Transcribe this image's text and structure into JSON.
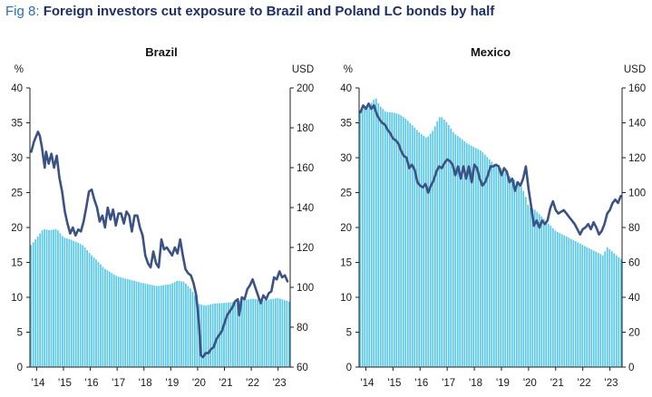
{
  "figure": {
    "prefix": "Fig 8:",
    "title": "Foreign investors cut exposure to Brazil and Poland LC bonds by half"
  },
  "colors": {
    "bars": "#5bc8ea",
    "line": "#3b5284",
    "axis": "#222222"
  },
  "chart_data": [
    {
      "type": "bar",
      "title": "Brazil",
      "left_unit": "%",
      "right_unit": "USD",
      "x_tick_labels": [
        "'14",
        "'15",
        "'16",
        "'17",
        "'18",
        "'19",
        "'20",
        "'21",
        "'22",
        "'23"
      ],
      "y_left": {
        "range": [
          0,
          40
        ],
        "ticks": [
          0,
          5,
          10,
          15,
          20,
          25,
          30,
          35,
          40
        ]
      },
      "y_right": {
        "range": [
          60,
          200
        ],
        "ticks": [
          60,
          80,
          100,
          120,
          140,
          160,
          180,
          200
        ]
      },
      "x_range": [
        2013.75,
        2023.45
      ],
      "bars": {
        "axis": "left",
        "anchors": [
          [
            2013.8,
            17.5
          ],
          [
            2014.0,
            18.5
          ],
          [
            2014.25,
            19.8
          ],
          [
            2014.5,
            19.6
          ],
          [
            2014.75,
            19.8
          ],
          [
            2015.0,
            18.6
          ],
          [
            2015.25,
            18.3
          ],
          [
            2015.5,
            17.9
          ],
          [
            2015.75,
            17.4
          ],
          [
            2016.0,
            16.2
          ],
          [
            2016.25,
            15.3
          ],
          [
            2016.5,
            14.2
          ],
          [
            2016.75,
            13.6
          ],
          [
            2017.0,
            13.0
          ],
          [
            2017.5,
            12.5
          ],
          [
            2018.0,
            12.0
          ],
          [
            2018.5,
            11.6
          ],
          [
            2019.0,
            11.9
          ],
          [
            2019.25,
            12.4
          ],
          [
            2019.5,
            12.2
          ],
          [
            2019.75,
            11.2
          ],
          [
            2019.9,
            10.3
          ],
          [
            2020.0,
            9.1
          ],
          [
            2020.3,
            8.8
          ],
          [
            2020.6,
            9.1
          ],
          [
            2021.0,
            9.2
          ],
          [
            2021.5,
            9.4
          ],
          [
            2022.0,
            9.8
          ],
          [
            2022.5,
            9.6
          ],
          [
            2023.0,
            9.9
          ],
          [
            2023.4,
            9.4
          ]
        ]
      },
      "line": {
        "axis": "right",
        "points": [
          [
            2013.8,
            168
          ],
          [
            2013.9,
            173
          ],
          [
            2014.05,
            178
          ],
          [
            2014.12,
            176
          ],
          [
            2014.2,
            170
          ],
          [
            2014.3,
            160
          ],
          [
            2014.35,
            168
          ],
          [
            2014.45,
            162
          ],
          [
            2014.55,
            167
          ],
          [
            2014.65,
            160
          ],
          [
            2014.75,
            166
          ],
          [
            2014.85,
            155
          ],
          [
            2014.95,
            148
          ],
          [
            2015.05,
            138
          ],
          [
            2015.15,
            132
          ],
          [
            2015.25,
            127
          ],
          [
            2015.35,
            130
          ],
          [
            2015.45,
            126
          ],
          [
            2015.55,
            129
          ],
          [
            2015.65,
            128
          ],
          [
            2015.75,
            133
          ],
          [
            2015.85,
            140
          ],
          [
            2015.95,
            148
          ],
          [
            2016.05,
            149
          ],
          [
            2016.15,
            144
          ],
          [
            2016.25,
            140
          ],
          [
            2016.35,
            133
          ],
          [
            2016.45,
            136
          ],
          [
            2016.55,
            130
          ],
          [
            2016.65,
            140
          ],
          [
            2016.75,
            134
          ],
          [
            2016.85,
            139
          ],
          [
            2016.95,
            131
          ],
          [
            2017.05,
            137
          ],
          [
            2017.15,
            137
          ],
          [
            2017.25,
            132
          ],
          [
            2017.35,
            138
          ],
          [
            2017.45,
            136
          ],
          [
            2017.55,
            128
          ],
          [
            2017.65,
            136
          ],
          [
            2017.75,
            136
          ],
          [
            2017.85,
            130
          ],
          [
            2017.95,
            126
          ],
          [
            2018.05,
            116
          ],
          [
            2018.15,
            112
          ],
          [
            2018.25,
            110
          ],
          [
            2018.35,
            118
          ],
          [
            2018.45,
            112
          ],
          [
            2018.55,
            110
          ],
          [
            2018.65,
            124
          ],
          [
            2018.75,
            119
          ],
          [
            2018.85,
            120
          ],
          [
            2018.95,
            118
          ],
          [
            2019.05,
            116
          ],
          [
            2019.15,
            120
          ],
          [
            2019.25,
            117
          ],
          [
            2019.35,
            124
          ],
          [
            2019.45,
            116
          ],
          [
            2019.55,
            109
          ],
          [
            2019.65,
            107
          ],
          [
            2019.75,
            106
          ],
          [
            2019.85,
            102
          ],
          [
            2019.95,
            96
          ],
          [
            2020.05,
            82
          ],
          [
            2020.12,
            66
          ],
          [
            2020.2,
            65
          ],
          [
            2020.3,
            67
          ],
          [
            2020.4,
            67
          ],
          [
            2020.5,
            69
          ],
          [
            2020.6,
            70
          ],
          [
            2020.7,
            74
          ],
          [
            2020.8,
            76
          ],
          [
            2020.9,
            78
          ],
          [
            2021.0,
            82
          ],
          [
            2021.1,
            86
          ],
          [
            2021.2,
            88
          ],
          [
            2021.3,
            90
          ],
          [
            2021.4,
            93
          ],
          [
            2021.5,
            94
          ],
          [
            2021.55,
            86
          ],
          [
            2021.65,
            95
          ],
          [
            2021.75,
            94
          ],
          [
            2021.85,
            99
          ],
          [
            2021.95,
            101
          ],
          [
            2022.05,
            104
          ],
          [
            2022.15,
            100
          ],
          [
            2022.25,
            96
          ],
          [
            2022.35,
            92
          ],
          [
            2022.45,
            96
          ],
          [
            2022.55,
            94
          ],
          [
            2022.65,
            97
          ],
          [
            2022.75,
            98
          ],
          [
            2022.85,
            105
          ],
          [
            2022.95,
            104
          ],
          [
            2023.05,
            108
          ],
          [
            2023.15,
            105
          ],
          [
            2023.25,
            106
          ],
          [
            2023.35,
            103
          ]
        ]
      }
    },
    {
      "type": "bar",
      "title": "Mexico",
      "left_unit": "%",
      "right_unit": "USD",
      "x_tick_labels": [
        "'14",
        "'15",
        "'16",
        "'17",
        "'18",
        "'19",
        "'20",
        "'21",
        "'22",
        "'23"
      ],
      "y_left": {
        "range": [
          0,
          40
        ],
        "ticks": [
          0,
          5,
          10,
          15,
          20,
          25,
          30,
          35,
          40
        ]
      },
      "y_right": {
        "range": [
          0,
          160
        ],
        "ticks": [
          0,
          20,
          40,
          60,
          80,
          100,
          120,
          140,
          160
        ]
      },
      "x_range": [
        2013.75,
        2023.45
      ],
      "bars": {
        "axis": "left",
        "anchors": [
          [
            2013.8,
            36.8
          ],
          [
            2014.0,
            37.2
          ],
          [
            2014.25,
            38.0
          ],
          [
            2014.35,
            38.7
          ],
          [
            2014.5,
            37.5
          ],
          [
            2014.75,
            36.5
          ],
          [
            2015.0,
            36.5
          ],
          [
            2015.25,
            36.2
          ],
          [
            2015.5,
            35.5
          ],
          [
            2015.75,
            34.5
          ],
          [
            2016.0,
            33.5
          ],
          [
            2016.25,
            32.8
          ],
          [
            2016.5,
            34.0
          ],
          [
            2016.6,
            35.0
          ],
          [
            2016.75,
            36.0
          ],
          [
            2017.0,
            35.0
          ],
          [
            2017.25,
            33.5
          ],
          [
            2017.5,
            32.8
          ],
          [
            2017.75,
            32.0
          ],
          [
            2018.0,
            31.5
          ],
          [
            2018.25,
            31.0
          ],
          [
            2018.5,
            30.0
          ],
          [
            2018.75,
            29.0
          ],
          [
            2019.0,
            28.5
          ],
          [
            2019.25,
            27.5
          ],
          [
            2019.5,
            26.8
          ],
          [
            2019.7,
            26.0
          ],
          [
            2019.85,
            25.0
          ],
          [
            2020.0,
            23.0
          ],
          [
            2020.25,
            22.5
          ],
          [
            2020.5,
            21.5
          ],
          [
            2020.75,
            20.5
          ],
          [
            2021.0,
            19.5
          ],
          [
            2021.25,
            19.0
          ],
          [
            2021.5,
            18.5
          ],
          [
            2021.75,
            18.0
          ],
          [
            2022.0,
            17.5
          ],
          [
            2022.25,
            17.0
          ],
          [
            2022.5,
            16.5
          ],
          [
            2022.75,
            16.0
          ],
          [
            2022.9,
            17.2
          ],
          [
            2023.1,
            16.5
          ],
          [
            2023.4,
            15.5
          ]
        ]
      },
      "line": {
        "axis": "right",
        "points": [
          [
            2013.8,
            146
          ],
          [
            2013.9,
            150
          ],
          [
            2014.0,
            148
          ],
          [
            2014.1,
            151
          ],
          [
            2014.2,
            148
          ],
          [
            2014.3,
            150
          ],
          [
            2014.4,
            145
          ],
          [
            2014.5,
            142
          ],
          [
            2014.6,
            140
          ],
          [
            2014.7,
            139
          ],
          [
            2014.8,
            136
          ],
          [
            2014.9,
            134
          ],
          [
            2015.0,
            131
          ],
          [
            2015.1,
            130
          ],
          [
            2015.2,
            128
          ],
          [
            2015.3,
            124
          ],
          [
            2015.4,
            121
          ],
          [
            2015.5,
            120
          ],
          [
            2015.6,
            114
          ],
          [
            2015.7,
            116
          ],
          [
            2015.8,
            113
          ],
          [
            2015.9,
            106
          ],
          [
            2016.0,
            104
          ],
          [
            2016.1,
            103
          ],
          [
            2016.2,
            105
          ],
          [
            2016.3,
            100
          ],
          [
            2016.4,
            104
          ],
          [
            2016.5,
            107
          ],
          [
            2016.6,
            112
          ],
          [
            2016.7,
            115
          ],
          [
            2016.8,
            114
          ],
          [
            2016.9,
            117
          ],
          [
            2017.0,
            119
          ],
          [
            2017.1,
            118
          ],
          [
            2017.2,
            116
          ],
          [
            2017.3,
            110
          ],
          [
            2017.4,
            115
          ],
          [
            2017.5,
            108
          ],
          [
            2017.6,
            115
          ],
          [
            2017.7,
            108
          ],
          [
            2017.8,
            115
          ],
          [
            2017.9,
            106
          ],
          [
            2018.0,
            116
          ],
          [
            2018.1,
            114
          ],
          [
            2018.2,
            108
          ],
          [
            2018.3,
            104
          ],
          [
            2018.4,
            106
          ],
          [
            2018.5,
            110
          ],
          [
            2018.6,
            115
          ],
          [
            2018.7,
            115
          ],
          [
            2018.8,
            116
          ],
          [
            2018.9,
            115
          ],
          [
            2019.0,
            110
          ],
          [
            2019.1,
            114
          ],
          [
            2019.2,
            112
          ],
          [
            2019.3,
            106
          ],
          [
            2019.4,
            108
          ],
          [
            2019.5,
            101
          ],
          [
            2019.6,
            106
          ],
          [
            2019.7,
            104
          ],
          [
            2019.8,
            108
          ],
          [
            2019.9,
            115
          ],
          [
            2020.0,
            102
          ],
          [
            2020.1,
            92
          ],
          [
            2020.2,
            81
          ],
          [
            2020.3,
            84
          ],
          [
            2020.4,
            80
          ],
          [
            2020.5,
            84
          ],
          [
            2020.6,
            82
          ],
          [
            2020.7,
            84
          ],
          [
            2020.8,
            91
          ],
          [
            2020.9,
            95
          ],
          [
            2021.0,
            90
          ],
          [
            2021.1,
            88
          ],
          [
            2021.2,
            89
          ],
          [
            2021.3,
            90
          ],
          [
            2021.4,
            88
          ],
          [
            2021.5,
            86
          ],
          [
            2021.6,
            84
          ],
          [
            2021.7,
            82
          ],
          [
            2021.8,
            79
          ],
          [
            2021.9,
            76
          ],
          [
            2022.0,
            79
          ],
          [
            2022.1,
            80
          ],
          [
            2022.2,
            82
          ],
          [
            2022.3,
            79
          ],
          [
            2022.4,
            83
          ],
          [
            2022.5,
            80
          ],
          [
            2022.6,
            76
          ],
          [
            2022.7,
            78
          ],
          [
            2022.8,
            82
          ],
          [
            2022.9,
            88
          ],
          [
            2023.0,
            90
          ],
          [
            2023.1,
            94
          ],
          [
            2023.2,
            96
          ],
          [
            2023.3,
            94
          ],
          [
            2023.4,
            98
          ]
        ]
      }
    }
  ]
}
